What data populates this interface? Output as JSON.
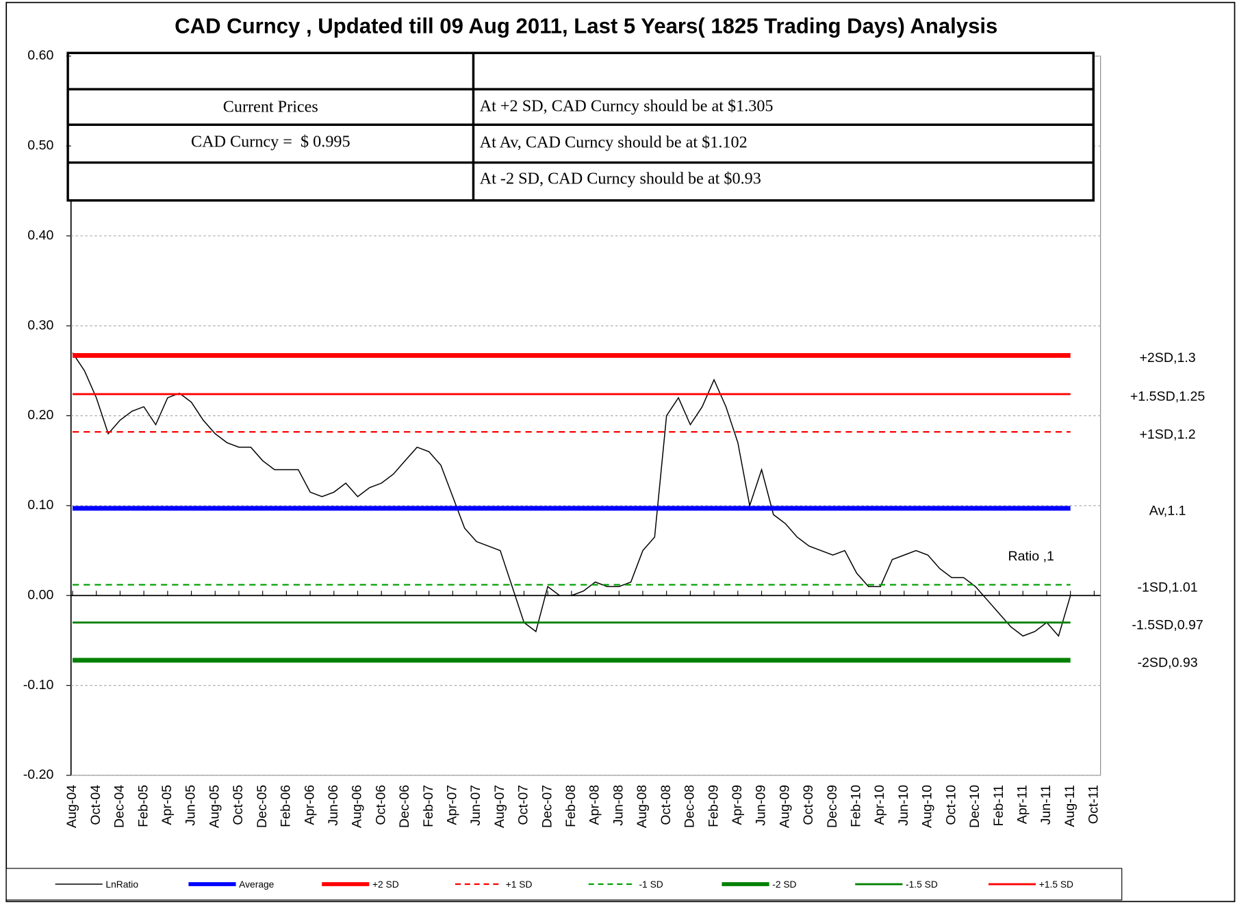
{
  "chart_data": {
    "type": "line",
    "title": "CAD Curncy , Updated till 09 Aug 2011, Last 5 Years( 1825 Trading Days) Analysis",
    "categories": [
      "Aug-04",
      null,
      "Oct-04",
      null,
      "Dec-04",
      null,
      "Feb-05",
      null,
      "Apr-05",
      null,
      "Jun-05",
      null,
      "Aug-05",
      null,
      "Oct-05",
      null,
      "Dec-05",
      null,
      "Feb-06",
      null,
      "Apr-06",
      null,
      "Jun-06",
      null,
      "Aug-06",
      null,
      "Oct-06",
      null,
      "Dec-06",
      null,
      "Feb-07",
      null,
      "Apr-07",
      null,
      "Jun-07",
      null,
      "Aug-07",
      null,
      "Oct-07",
      null,
      "Dec-07",
      null,
      "Feb-08",
      null,
      "Apr-08",
      null,
      "Jun-08",
      null,
      "Aug-08",
      null,
      "Oct-08",
      null,
      "Dec-08",
      null,
      "Feb-09",
      null,
      "Apr-09",
      null,
      "Jun-09",
      null,
      "Aug-09",
      null,
      "Oct-09",
      null,
      "Dec-09",
      null,
      "Feb-10",
      null,
      "Apr-10",
      null,
      "Jun-10",
      null,
      "Aug-10",
      null,
      "Oct-10",
      null,
      "Dec-10",
      null,
      "Feb-11",
      null,
      "Apr-11",
      null,
      "Jun-11",
      null,
      "Aug-11",
      null,
      "Oct-11"
    ],
    "series": [
      {
        "name": "LnRatio",
        "color": "#000000",
        "width": 1.3,
        "values": [
          0.27,
          0.25,
          0.22,
          0.18,
          0.195,
          0.205,
          0.21,
          0.19,
          0.22,
          0.225,
          0.215,
          0.195,
          0.18,
          0.17,
          0.165,
          0.165,
          0.15,
          0.14,
          0.14,
          0.14,
          0.115,
          0.11,
          0.115,
          0.125,
          0.11,
          0.12,
          0.125,
          0.135,
          0.15,
          0.165,
          0.16,
          0.145,
          0.11,
          0.075,
          0.06,
          0.055,
          0.05,
          0.01,
          -0.03,
          -0.04,
          0.01,
          0.0,
          0.0,
          0.005,
          0.015,
          0.01,
          0.01,
          0.015,
          0.05,
          0.065,
          0.2,
          0.22,
          0.19,
          0.21,
          0.24,
          0.21,
          0.17,
          0.1,
          0.14,
          0.09,
          0.08,
          0.065,
          0.055,
          0.05,
          0.045,
          0.05,
          0.025,
          0.01,
          0.01,
          0.04,
          0.045,
          0.05,
          0.045,
          0.03,
          0.02,
          0.02,
          0.01,
          -0.005,
          -0.02,
          -0.035,
          -0.045,
          -0.04,
          -0.03,
          -0.045,
          0.0,
          null,
          null
        ]
      },
      {
        "name": "Average",
        "color": "#0000ff",
        "width": 6,
        "value": 0.097,
        "label": "Av,1.1"
      },
      {
        "name": "+2 SD",
        "color": "#ff0000",
        "width": 6,
        "value": 0.267,
        "label": "+2SD,1.3"
      },
      {
        "name": "+1 SD",
        "color": "#ff0000",
        "width": 2,
        "dash": true,
        "value": 0.182,
        "label": "+1SD,1.2"
      },
      {
        "name": "-1 SD",
        "color": "#00a000",
        "width": 2,
        "dash": true,
        "value": 0.012,
        "label": "-1SD,1.01"
      },
      {
        "name": "-2 SD",
        "color": "#008000",
        "width": 6,
        "value": -0.072,
        "label": "-2SD,0.93"
      },
      {
        "name": "-1.5 SD",
        "color": "#008000",
        "width": 2.5,
        "value": -0.03,
        "label": "-1.5SD,0.97"
      },
      {
        "name": "+1.5 SD",
        "color": "#ff0000",
        "width": 2.5,
        "value": 0.224,
        "label": "+1.5SD,1.25"
      }
    ],
    "annotation": "Ratio ,1",
    "ylim": [
      -0.2,
      0.6
    ],
    "yticks": [
      {
        "value": -0.2,
        "label": "-0.20"
      },
      {
        "value": -0.1,
        "label": "-0.10"
      },
      {
        "value": 0,
        "label": "0.00"
      },
      {
        "value": 0.1,
        "label": "0.10"
      },
      {
        "value": 0.2,
        "label": "0.20"
      },
      {
        "value": 0.3,
        "label": "0.30"
      },
      {
        "value": 0.4,
        "label": "0.40"
      },
      {
        "value": 0.5,
        "label": "0.50"
      },
      {
        "value": 0.6,
        "label": "0.60"
      }
    ],
    "grid": true
  },
  "table": {
    "left": [
      "Current Prices",
      "CAD Curncy =  $ 0.995"
    ],
    "right": [
      "At +2 SD, CAD Curncy should be at $1.305",
      "At Av, CAD Curncy should be at $1.102",
      "At -2 SD, CAD Curncy should be at $0.93"
    ]
  }
}
